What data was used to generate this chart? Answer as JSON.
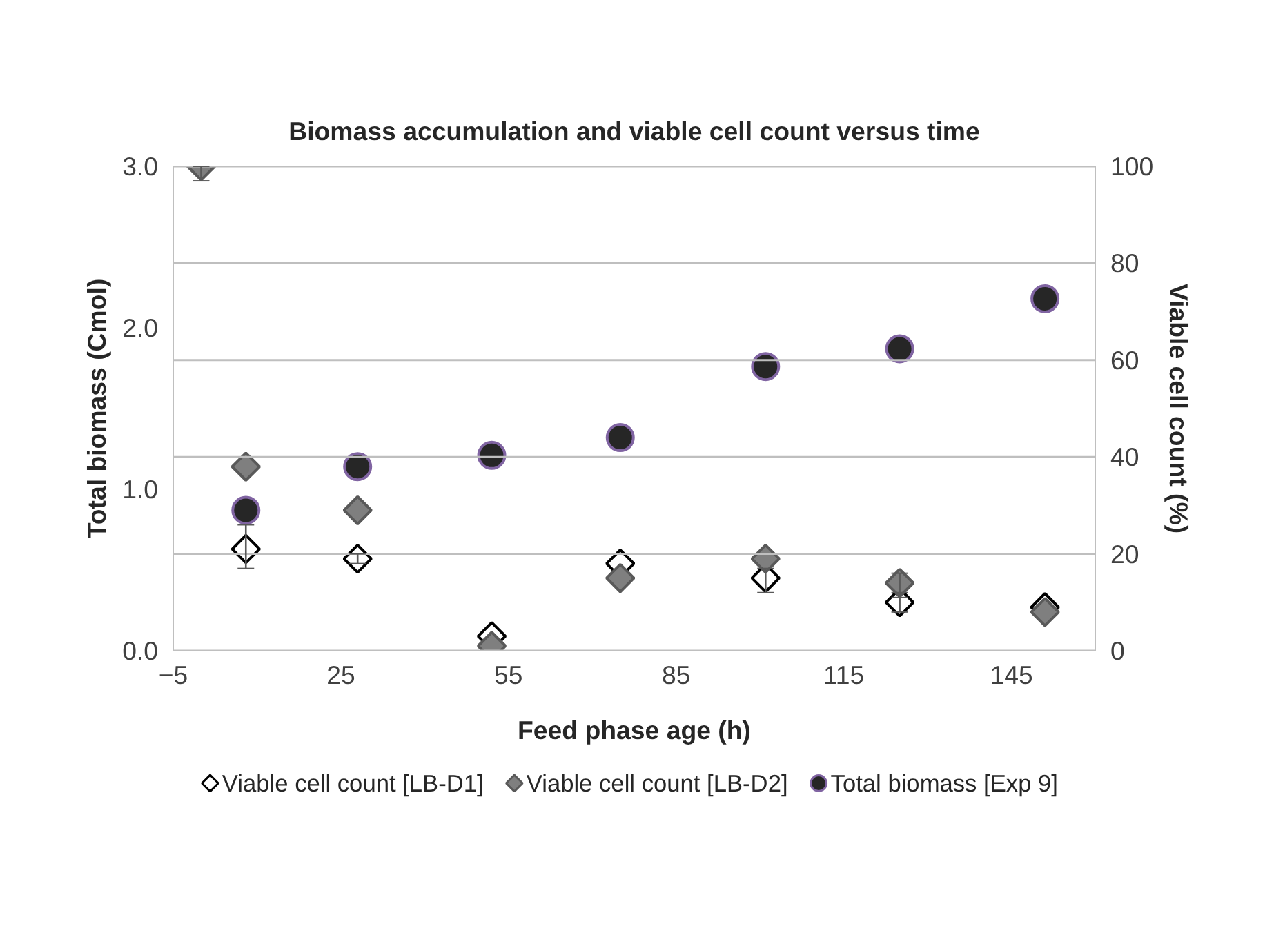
{
  "chart_data": {
    "type": "scatter",
    "title": "Biomass accumulation and viable cell count versus time",
    "xlabel": "Feed phase age (h)",
    "ylabel": "Total biomass (Cmol)",
    "y2label": "Viable cell count (%)",
    "xlim": [
      -5,
      160
    ],
    "xticks": [
      -5,
      25,
      55,
      85,
      115,
      145
    ],
    "ylim": [
      0,
      3
    ],
    "yticks": [
      {
        "value": 0,
        "label": "0.0"
      },
      {
        "value": 1,
        "label": "1.0"
      },
      {
        "value": 2,
        "label": "2.0"
      },
      {
        "value": 3,
        "label": "3.0"
      }
    ],
    "y2lim": [
      0,
      100
    ],
    "y2ticks": [
      0,
      20,
      40,
      60,
      80,
      100
    ],
    "grid": "y",
    "legend": "bottom",
    "series": [
      {
        "name": "Viable cell count [LB-D1]",
        "color": "#ffffff",
        "marker": "diamond",
        "axis": "y2",
        "x": [
          8,
          28,
          52,
          75,
          101,
          125,
          151
        ],
        "values": [
          21,
          19,
          3,
          18,
          15,
          10,
          9
        ],
        "errors": [
          [
            17,
            26
          ],
          [
            18,
            20
          ],
          null,
          null,
          [
            12,
            17
          ],
          [
            8,
            12
          ],
          null
        ]
      },
      {
        "name": "Viable cell count [LB-D2]",
        "color": "#7f7f7f",
        "marker": "diamond",
        "axis": "y2",
        "x": [
          0,
          8,
          28,
          52,
          75,
          101,
          125,
          151
        ],
        "values": [
          100,
          38,
          29,
          1,
          15,
          19,
          14,
          8
        ],
        "errors": [
          [
            97,
            100
          ],
          null,
          null,
          null,
          null,
          null,
          [
            11,
            16
          ],
          null
        ]
      },
      {
        "name": "Total biomass [Exp 9]",
        "color": "#262626",
        "marker": "circle",
        "x": [
          8,
          28,
          52,
          75,
          101,
          125,
          151
        ],
        "values": [
          0.87,
          1.14,
          1.21,
          1.32,
          1.76,
          1.87,
          2.18
        ]
      }
    ]
  }
}
